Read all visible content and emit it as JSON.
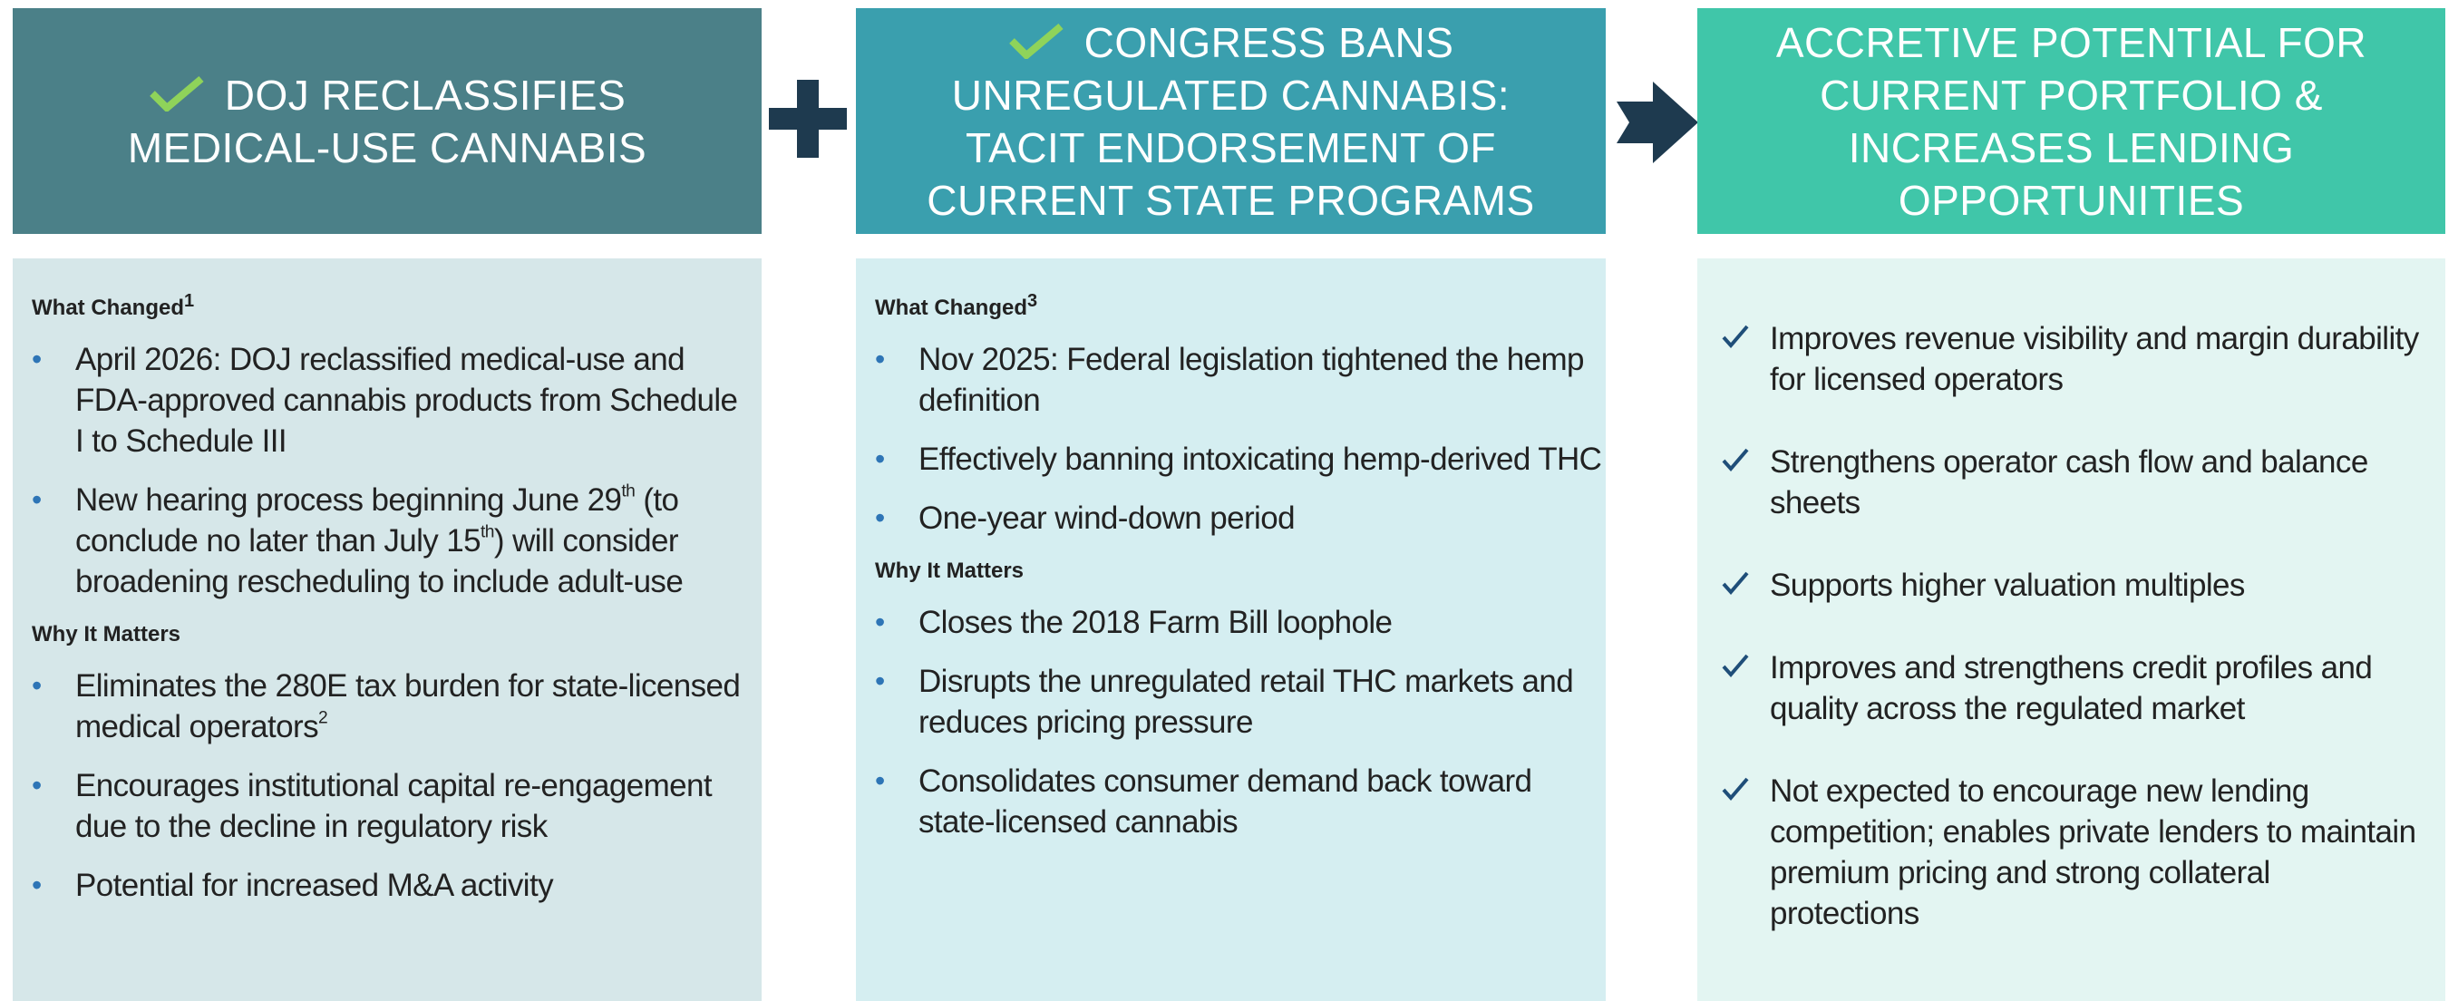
{
  "columns": [
    {
      "header": {
        "lines": [
          "DOJ RECLASSIFIES",
          "MEDICAL-USE CANNABIS"
        ]
      },
      "sections": [
        {
          "heading": [
            "What Changed",
            {
              "sup": "1"
            }
          ],
          "bullets": [
            [
              "April 2026: DOJ reclassified medical-use and FDA-approved cannabis products from Schedule I to Schedule III"
            ],
            [
              "New hearing process beginning June 29",
              {
                "sup": "th"
              },
              " (to conclude no later than July 15",
              {
                "sup": "th"
              },
              ") will consider broadening rescheduling to include adult-use"
            ]
          ]
        },
        {
          "heading": [
            "Why It Matters"
          ],
          "bullets": [
            [
              "Eliminates the 280E tax burden for state-licensed medical operators",
              {
                "sup": "2"
              }
            ],
            [
              "Encourages institutional capital re-engagement due to the decline in regulatory risk"
            ],
            [
              "Potential for increased M&A activity"
            ]
          ]
        }
      ]
    },
    {
      "header": {
        "lines": [
          "CONGRESS BANS",
          "UNREGULATED CANNABIS:",
          "TACIT ENDORSEMENT OF",
          "CURRENT STATE PROGRAMS"
        ]
      },
      "sections": [
        {
          "heading": [
            "What Changed",
            {
              "sup": "3"
            }
          ],
          "bullets": [
            [
              "Nov 2025: Federal legislation tightened the hemp definition"
            ],
            [
              "Effectively banning intoxicating hemp-derived THC"
            ],
            [
              "One-year wind-down period"
            ]
          ]
        },
        {
          "heading": [
            "Why It Matters"
          ],
          "bullets": [
            [
              "Closes the 2018 Farm Bill loophole"
            ],
            [
              "Disrupts the unregulated retail THC markets and reduces pricing pressure"
            ],
            [
              "Consolidates consumer demand back toward state-licensed cannabis"
            ]
          ]
        }
      ]
    },
    {
      "header": {
        "lines": [
          "ACCRETIVE POTENTIAL FOR",
          "CURRENT PORTFOLIO &",
          "INCREASES LENDING",
          "OPPORTUNITIES"
        ]
      },
      "items": [
        "Improves revenue visibility and margin durability for licensed operators",
        "Strengthens operator cash flow and balance sheets",
        "Supports higher valuation multiples",
        "Improves and strengthens credit profiles and quality across the regulated market",
        "Not expected to encourage new lending competition; enables private lenders to maintain premium pricing and strong collateral protections"
      ]
    }
  ]
}
